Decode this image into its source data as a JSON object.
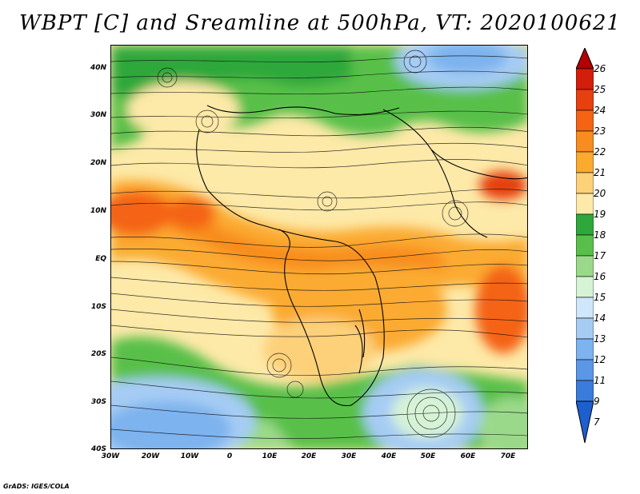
{
  "title": "WBPT [C] and Sreamline at 500hPa, VT: 2020100621",
  "credit": "GrADS: IGES/COLA",
  "map": {
    "type": "filled-contour-with-streamlines",
    "field": "WBPT",
    "unit": "C",
    "level": "500hPa",
    "valid_time": "2020100621",
    "lon_range": [
      -30,
      75
    ],
    "lat_range": [
      -40,
      45
    ],
    "lat_ticks": [
      "40N",
      "30N",
      "20N",
      "10N",
      "EQ",
      "10S",
      "20S",
      "30S",
      "40S"
    ],
    "lon_ticks": [
      "30W",
      "20W",
      "10W",
      "0",
      "10E",
      "20E",
      "30E",
      "40E",
      "50E",
      "60E",
      "70E"
    ],
    "features": [
      {
        "name": "warm-band-equatorial",
        "range_c": [
          19,
          22
        ]
      },
      {
        "name": "cool-pool-southwest-atlantic",
        "range_c": [
          12,
          15
        ]
      },
      {
        "name": "cool-pool-south-indian-ocean",
        "range_c": [
          13,
          15
        ]
      },
      {
        "name": "cool-pool-northeast",
        "range_c": [
          13,
          15
        ]
      },
      {
        "name": "warm-spot-indian-ocean",
        "range_c": [
          22,
          23
        ]
      }
    ]
  },
  "colorbar": {
    "levels": [
      "26",
      "25",
      "24",
      "23",
      "22",
      "21",
      "20",
      "19",
      "18",
      "17",
      "16",
      "15",
      "14",
      "13",
      "12",
      "11",
      "9",
      "7"
    ],
    "colors": [
      "#b40000",
      "#d21e0a",
      "#e6400f",
      "#f46414",
      "#f88c1e",
      "#fbaa30",
      "#fdd07a",
      "#fde9a8",
      "#2ea83a",
      "#58c04a",
      "#9bd98a",
      "#d6f3d6",
      "#cfe6fb",
      "#a6ccf4",
      "#7db3ee",
      "#5a98e6",
      "#3a7cdc",
      "#1e5fd0"
    ]
  }
}
